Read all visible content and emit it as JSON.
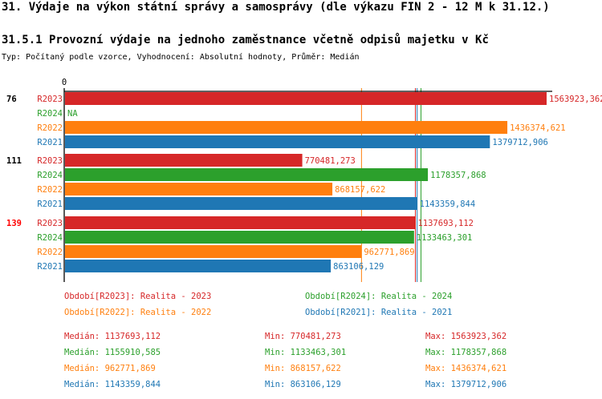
{
  "header": {
    "title": "31. Výdaje na výkon státní správy a samosprávy (dle výkazu FIN 2 - 12 M k 31.12.)",
    "subtitle": "31.5.1 Provozní výdaje na jednoho zaměstnance včetně odpisů majetku v Kč",
    "info": "Typ: Počítaný podle vzorce, Vyhodnocení: Absolutní hodnoty, Průměr: Medián"
  },
  "chart_data": {
    "type": "bar",
    "orientation": "horizontal",
    "x_tick_labels": [
      "0"
    ],
    "xlim": [
      0,
      1563923.362
    ],
    "grid": false,
    "colors": {
      "R2023": "#d62728",
      "R2024": "#2ca02c",
      "R2022": "#ff7f0e",
      "R2021": "#1f77b4"
    },
    "groups": [
      {
        "label": "76",
        "label_color": "#000000",
        "bars": [
          {
            "series": "R2023",
            "value": 1563923.362,
            "label": "1563923,362"
          },
          {
            "series": "R2024",
            "value": null,
            "label": "NA"
          },
          {
            "series": "R2022",
            "value": 1436374.621,
            "label": "1436374,621"
          },
          {
            "series": "R2021",
            "value": 1379712.906,
            "label": "1379712,906"
          }
        ]
      },
      {
        "label": "111",
        "label_color": "#000000",
        "bars": [
          {
            "series": "R2023",
            "value": 770481.273,
            "label": "770481,273"
          },
          {
            "series": "R2024",
            "value": 1178357.868,
            "label": "1178357,868"
          },
          {
            "series": "R2022",
            "value": 868157.622,
            "label": "868157,622"
          },
          {
            "series": "R2021",
            "value": 1143359.844,
            "label": "1143359,844"
          }
        ]
      },
      {
        "label": "139",
        "label_color": "#ff0000",
        "bars": [
          {
            "series": "R2023",
            "value": 1137693.112,
            "label": "1137693,112"
          },
          {
            "series": "R2024",
            "value": 1133463.301,
            "label": "1133463,301"
          },
          {
            "series": "R2022",
            "value": 962771.869,
            "label": "962771,869"
          },
          {
            "series": "R2021",
            "value": 863106.129,
            "label": "863106,129"
          }
        ]
      }
    ],
    "median_lines": [
      {
        "series": "R2022",
        "value": 962771.869
      },
      {
        "series": "R2023",
        "value": 1137693.112
      },
      {
        "series": "R2021",
        "value": 1143359.844
      },
      {
        "series": "R2024",
        "value": 1155910.585
      }
    ],
    "legend": [
      {
        "series": "R2023",
        "text": "Období[R2023]: Realita - 2023"
      },
      {
        "series": "R2024",
        "text": "Období[R2024]: Realita - 2024"
      },
      {
        "series": "R2022",
        "text": "Období[R2022]: Realita - 2022"
      },
      {
        "series": "R2021",
        "text": "Období[R2021]: Realita - 2021"
      }
    ],
    "stats": [
      {
        "series": "R2023",
        "median": "Medián: 1137693,112",
        "min": "Min: 770481,273",
        "max": "Max: 1563923,362"
      },
      {
        "series": "R2024",
        "median": "Medián: 1155910,585",
        "min": "Min: 1133463,301",
        "max": "Max: 1178357,868"
      },
      {
        "series": "R2022",
        "median": "Medián: 962771,869",
        "min": "Min: 868157,622",
        "max": "Max: 1436374,621"
      },
      {
        "series": "R2021",
        "median": "Medián: 1143359,844",
        "min": "Min: 863106,129",
        "max": "Max: 1379712,906"
      }
    ]
  }
}
